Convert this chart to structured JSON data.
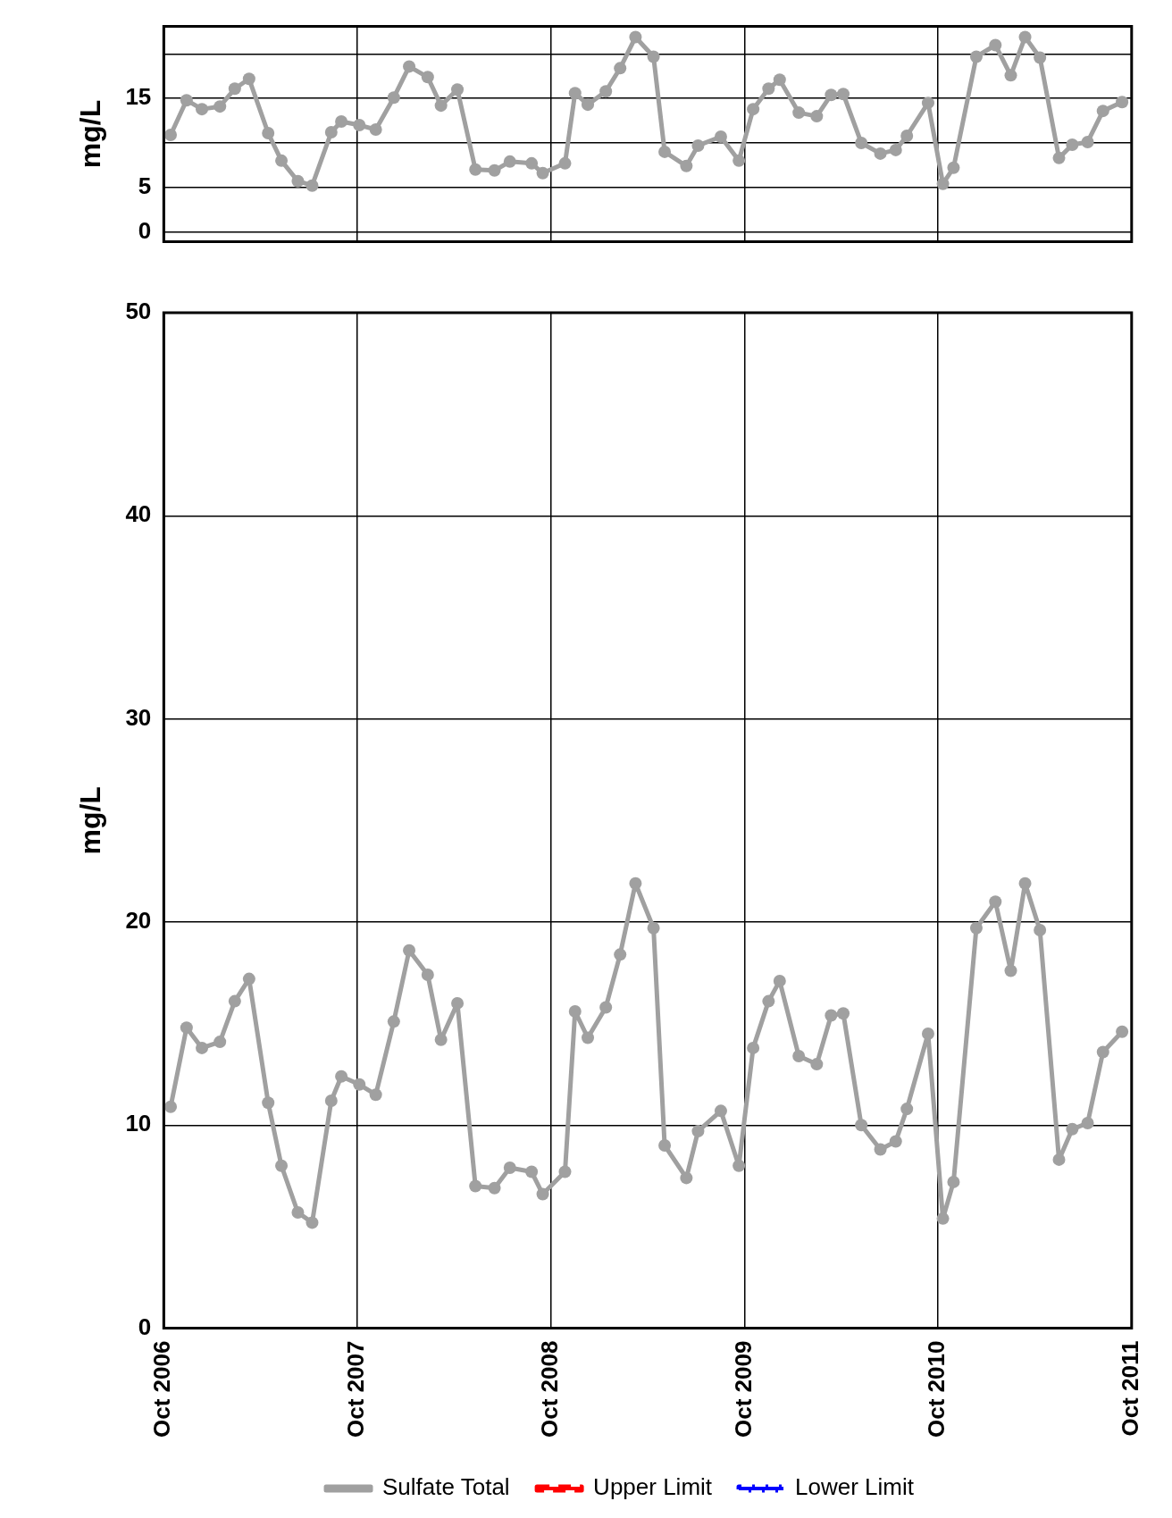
{
  "chart_data": [
    {
      "type": "line",
      "ylabel": "mg/L",
      "xlim": [
        "2006-10",
        "2011-10"
      ],
      "xticks": [
        {
          "value": "2006-10",
          "label": null
        },
        {
          "value": "2007-10",
          "label": null
        },
        {
          "value": "2008-10",
          "label": null
        },
        {
          "value": "2009-10",
          "label": null
        },
        {
          "value": "2010-10",
          "label": null
        },
        {
          "value": "2011-10",
          "label": null
        }
      ],
      "ylim": [
        -1.1,
        23.1
      ],
      "yticks": [
        0,
        5,
        {
          "value": 10,
          "label": null
        },
        15,
        {
          "value": 20,
          "label": null
        }
      ],
      "tick_labels": "y",
      "grid": true,
      "marker": "circle",
      "line_style": "solid",
      "x": [
        "2006-10-14",
        "2006-11-13",
        "2006-12-12",
        "2007-01-15",
        "2007-02-12",
        "2007-03-11",
        "2007-04-16",
        "2007-05-11",
        "2007-06-11",
        "2007-07-08",
        "2007-08-13",
        "2007-09-01",
        "2007-10-05",
        "2007-11-05",
        "2007-12-09",
        "2008-01-07",
        "2008-02-11",
        "2008-03-07",
        "2008-04-07",
        "2008-05-11",
        "2008-06-16",
        "2008-07-15",
        "2008-08-25",
        "2008-09-15",
        "2008-10-27",
        "2008-11-15",
        "2008-12-09",
        "2009-01-12",
        "2009-02-08",
        "2009-03-09",
        "2009-04-12",
        "2009-05-03",
        "2009-06-13",
        "2009-07-05",
        "2009-08-17",
        "2009-09-20",
        "2009-10-17",
        "2009-11-15",
        "2009-12-06",
        "2010-01-11",
        "2010-02-14",
        "2010-03-13",
        "2010-04-05",
        "2010-05-09",
        "2010-06-14",
        "2010-07-13",
        "2010-08-03",
        "2010-09-12",
        "2010-10-10",
        "2010-10-30",
        "2010-12-12",
        "2011-01-17",
        "2011-02-15",
        "2011-03-14",
        "2011-04-11",
        "2011-05-17",
        "2011-06-11",
        "2011-07-10",
        "2011-08-08",
        "2011-09-13"
      ],
      "series": [
        {
          "color": "#a0a0a0",
          "values": [
            10.9,
            14.8,
            13.8,
            14.1,
            16.1,
            17.2,
            11.1,
            8.0,
            5.7,
            5.2,
            11.2,
            12.4,
            12.0,
            11.5,
            15.1,
            18.6,
            17.4,
            14.2,
            16.0,
            7.0,
            6.9,
            7.9,
            7.7,
            6.6,
            7.7,
            15.6,
            14.3,
            15.8,
            18.4,
            21.9,
            19.7,
            9.0,
            7.4,
            9.7,
            10.7,
            8.0,
            13.8,
            16.1,
            17.1,
            13.4,
            13.0,
            15.4,
            15.5,
            10.0,
            8.8,
            9.2,
            10.8,
            14.5,
            5.4,
            7.2,
            19.7,
            21.0,
            17.6,
            21.9,
            19.6,
            8.3,
            9.8,
            10.1,
            13.6,
            14.6
          ]
        }
      ]
    },
    {
      "type": "line",
      "ylabel": "mg/L",
      "xlim": [
        "2006-10",
        "2011-10"
      ],
      "xticks": [
        {
          "value": "2006-10",
          "label": "Oct 2006"
        },
        {
          "value": "2007-10",
          "label": "Oct 2007"
        },
        {
          "value": "2008-10",
          "label": "Oct 2008"
        },
        {
          "value": "2009-10",
          "label": "Oct 2009"
        },
        {
          "value": "2010-10",
          "label": "Oct 2010"
        },
        {
          "value": "2011-10",
          "label": "Oct 2011"
        }
      ],
      "ylim": [
        0,
        50
      ],
      "yticks": [
        0,
        10,
        20,
        30,
        40,
        50
      ],
      "grid": true,
      "marker": "circle",
      "legend": "bottom",
      "x": [
        "2006-10-14",
        "2006-11-13",
        "2006-12-12",
        "2007-01-15",
        "2007-02-12",
        "2007-03-11",
        "2007-04-16",
        "2007-05-11",
        "2007-06-11",
        "2007-07-08",
        "2007-08-13",
        "2007-09-01",
        "2007-10-05",
        "2007-11-05",
        "2007-12-09",
        "2008-01-07",
        "2008-02-11",
        "2008-03-07",
        "2008-04-07",
        "2008-05-11",
        "2008-06-16",
        "2008-07-15",
        "2008-08-25",
        "2008-09-15",
        "2008-10-27",
        "2008-11-15",
        "2008-12-09",
        "2009-01-12",
        "2009-02-08",
        "2009-03-09",
        "2009-04-12",
        "2009-05-03",
        "2009-06-13",
        "2009-07-05",
        "2009-08-17",
        "2009-09-20",
        "2009-10-17",
        "2009-11-15",
        "2009-12-06",
        "2010-01-11",
        "2010-02-14",
        "2010-03-13",
        "2010-04-05",
        "2010-05-09",
        "2010-06-14",
        "2010-07-13",
        "2010-08-03",
        "2010-09-12",
        "2010-10-10",
        "2010-10-30",
        "2010-12-12",
        "2011-01-17",
        "2011-02-15",
        "2011-03-14",
        "2011-04-11",
        "2011-05-17",
        "2011-06-11",
        "2011-07-10",
        "2011-08-08",
        "2011-09-13"
      ],
      "series": [
        {
          "name": "Sulfate Total",
          "color": "#a0a0a0",
          "line_style": "solid",
          "values": [
            10.9,
            14.8,
            13.8,
            14.1,
            16.1,
            17.2,
            11.1,
            8.0,
            5.7,
            5.2,
            11.2,
            12.4,
            12.0,
            11.5,
            15.1,
            18.6,
            17.4,
            14.2,
            16.0,
            7.0,
            6.9,
            7.9,
            7.7,
            6.6,
            7.7,
            15.6,
            14.3,
            15.8,
            18.4,
            21.9,
            19.7,
            9.0,
            7.4,
            9.7,
            10.7,
            8.0,
            13.8,
            16.1,
            17.1,
            13.4,
            13.0,
            15.4,
            15.5,
            10.0,
            8.8,
            9.2,
            10.8,
            14.5,
            5.4,
            7.2,
            19.7,
            21.0,
            17.6,
            21.9,
            19.6,
            8.3,
            9.8,
            10.1,
            13.6,
            14.6
          ]
        },
        {
          "name": "Upper Limit",
          "color": "#ff0000",
          "line_style": "dashed",
          "values": [
            null,
            null,
            null,
            null,
            null,
            null,
            null,
            null,
            null,
            null,
            null,
            null,
            null,
            null,
            null,
            null,
            null,
            null,
            null,
            null,
            null,
            null,
            null,
            null,
            null,
            null,
            null,
            null,
            null,
            null,
            null,
            null,
            null,
            null,
            null,
            null,
            null,
            null,
            null,
            null,
            null,
            null,
            null,
            null,
            null,
            null,
            null,
            null,
            null,
            null,
            null,
            null,
            null,
            null,
            null,
            null,
            null,
            null,
            null,
            null
          ]
        },
        {
          "name": "Lower Limit",
          "color": "#0000ff",
          "line_style": "dotted",
          "values": [
            null,
            null,
            null,
            null,
            null,
            null,
            null,
            null,
            null,
            null,
            null,
            null,
            null,
            null,
            null,
            null,
            null,
            null,
            null,
            null,
            null,
            null,
            null,
            null,
            null,
            null,
            null,
            null,
            null,
            null,
            null,
            null,
            null,
            null,
            null,
            null,
            null,
            null,
            null,
            null,
            null,
            null,
            null,
            null,
            null,
            null,
            null,
            null,
            null,
            null,
            null,
            null,
            null,
            null,
            null,
            null,
            null,
            null,
            null,
            null
          ]
        }
      ]
    }
  ]
}
